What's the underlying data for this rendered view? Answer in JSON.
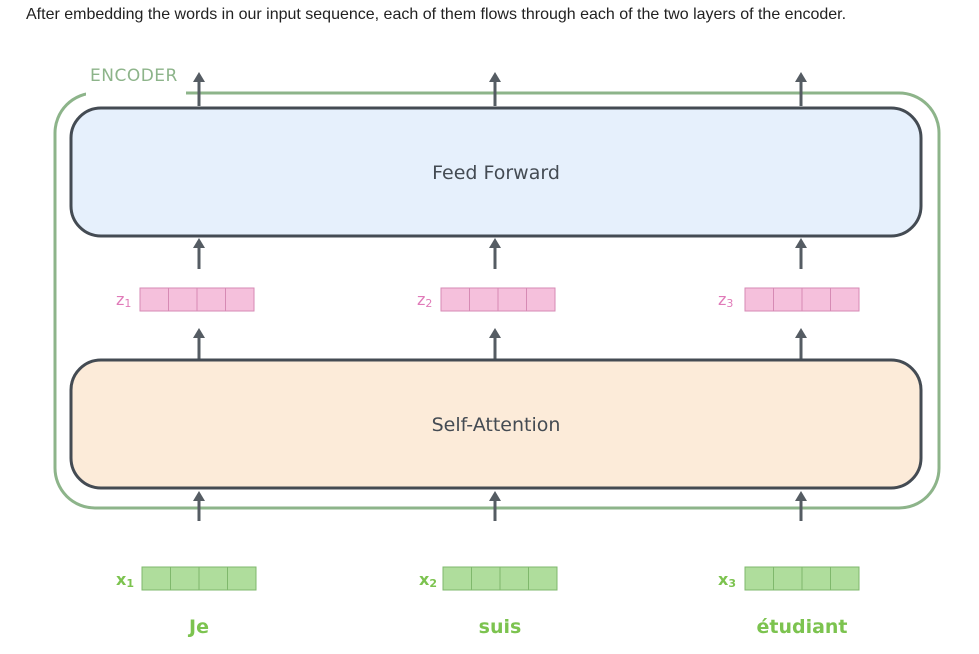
{
  "caption": "After embedding the words in our input sequence, each of them flows through each of the two layers of the encoder.",
  "encoder": {
    "label": "ENCODER"
  },
  "feed_forward": {
    "label": "Feed Forward"
  },
  "self_attention": {
    "label": "Self-Attention"
  },
  "z_labels": [
    {
      "base": "z",
      "sub": "1"
    },
    {
      "base": "z",
      "sub": "2"
    },
    {
      "base": "z",
      "sub": "3"
    }
  ],
  "x_labels": [
    {
      "base": "x",
      "sub": "1"
    },
    {
      "base": "x",
      "sub": "2"
    },
    {
      "base": "x",
      "sub": "3"
    }
  ],
  "words": [
    "Je",
    "suis",
    "étudiant"
  ],
  "colors": {
    "encoder_border": "#8db48a",
    "encoder_label": "#8db48a",
    "feed_forward_fill": "#e6f0fc",
    "self_attention_fill": "#fcebd9",
    "box_stroke": "#444b53",
    "arrow": "#555c63",
    "z_fill": "#f5c0dc",
    "z_stroke": "#d68ab4",
    "z_text": "#e07ab8",
    "x_fill": "#afdd9c",
    "x_stroke": "#7fb86c",
    "x_text": "#7cc34f",
    "layer_text": "#444b53"
  }
}
